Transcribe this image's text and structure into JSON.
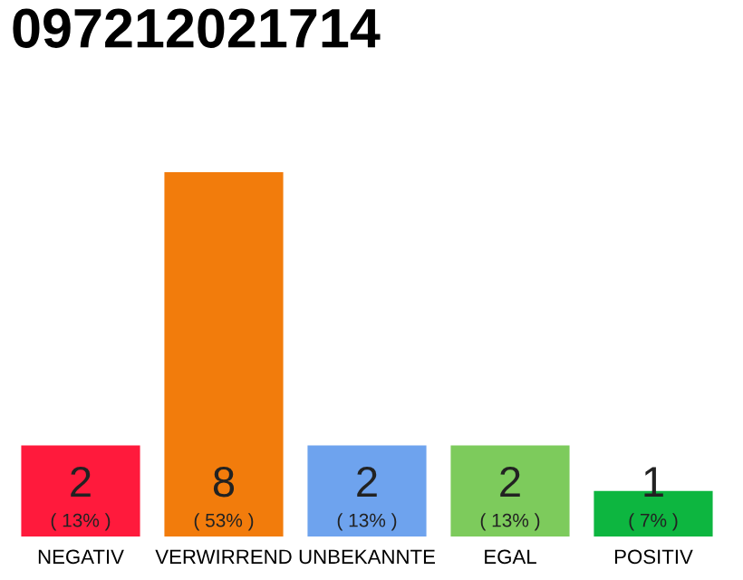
{
  "chart_data": {
    "type": "bar",
    "title": "097212021714",
    "categories": [
      "NEGATIV",
      "VERWIRREND",
      "UNBEKANNTE",
      "EGAL",
      "POSITIV"
    ],
    "values": [
      2,
      8,
      2,
      2,
      1
    ],
    "colors": [
      "#ff1a3c",
      "#f27c0c",
      "#6ea3ee",
      "#7dcb5c",
      "#0db640"
    ],
    "value_labels": [
      "2\n( 13% )",
      "8\n( 53% )",
      "2\n( 13% )",
      "2\n( 13% )",
      "1\n( 7% )"
    ],
    "ylim": [
      0,
      8
    ],
    "tick_labels": "x",
    "grid": false,
    "legend": false
  }
}
